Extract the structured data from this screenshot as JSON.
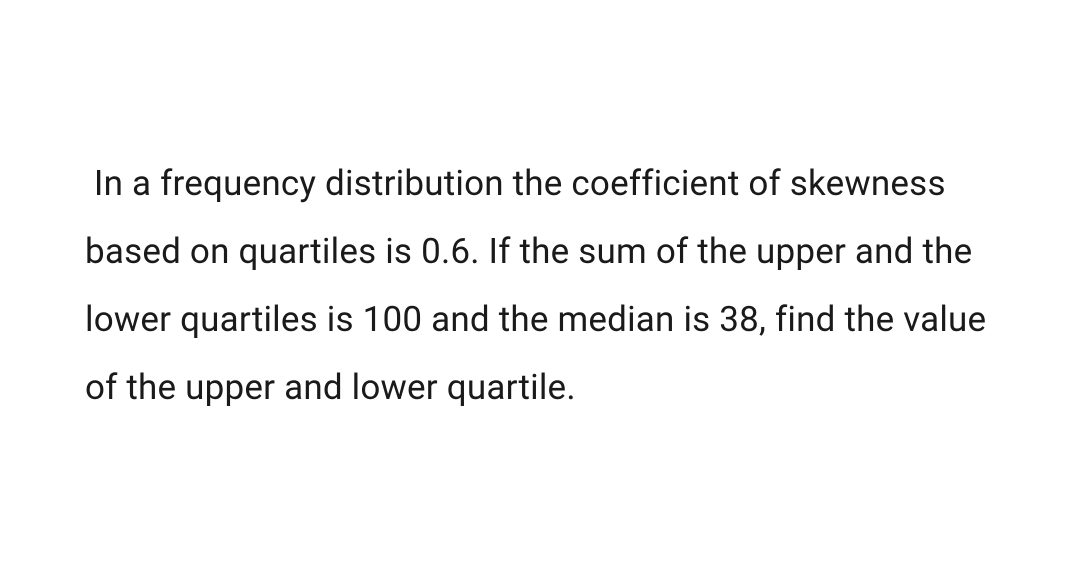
{
  "problem": {
    "text": " In a frequency distribution the coefficient of skewness based on quartiles is 0.6. If the sum of the upper and the lower quartiles is 100 and the median is 38, find the value of the upper and lower quartile.",
    "fontsize": 35,
    "color": "#1a1a1a",
    "background_color": "#ffffff",
    "line_height": 1.95,
    "font_weight": 400
  }
}
